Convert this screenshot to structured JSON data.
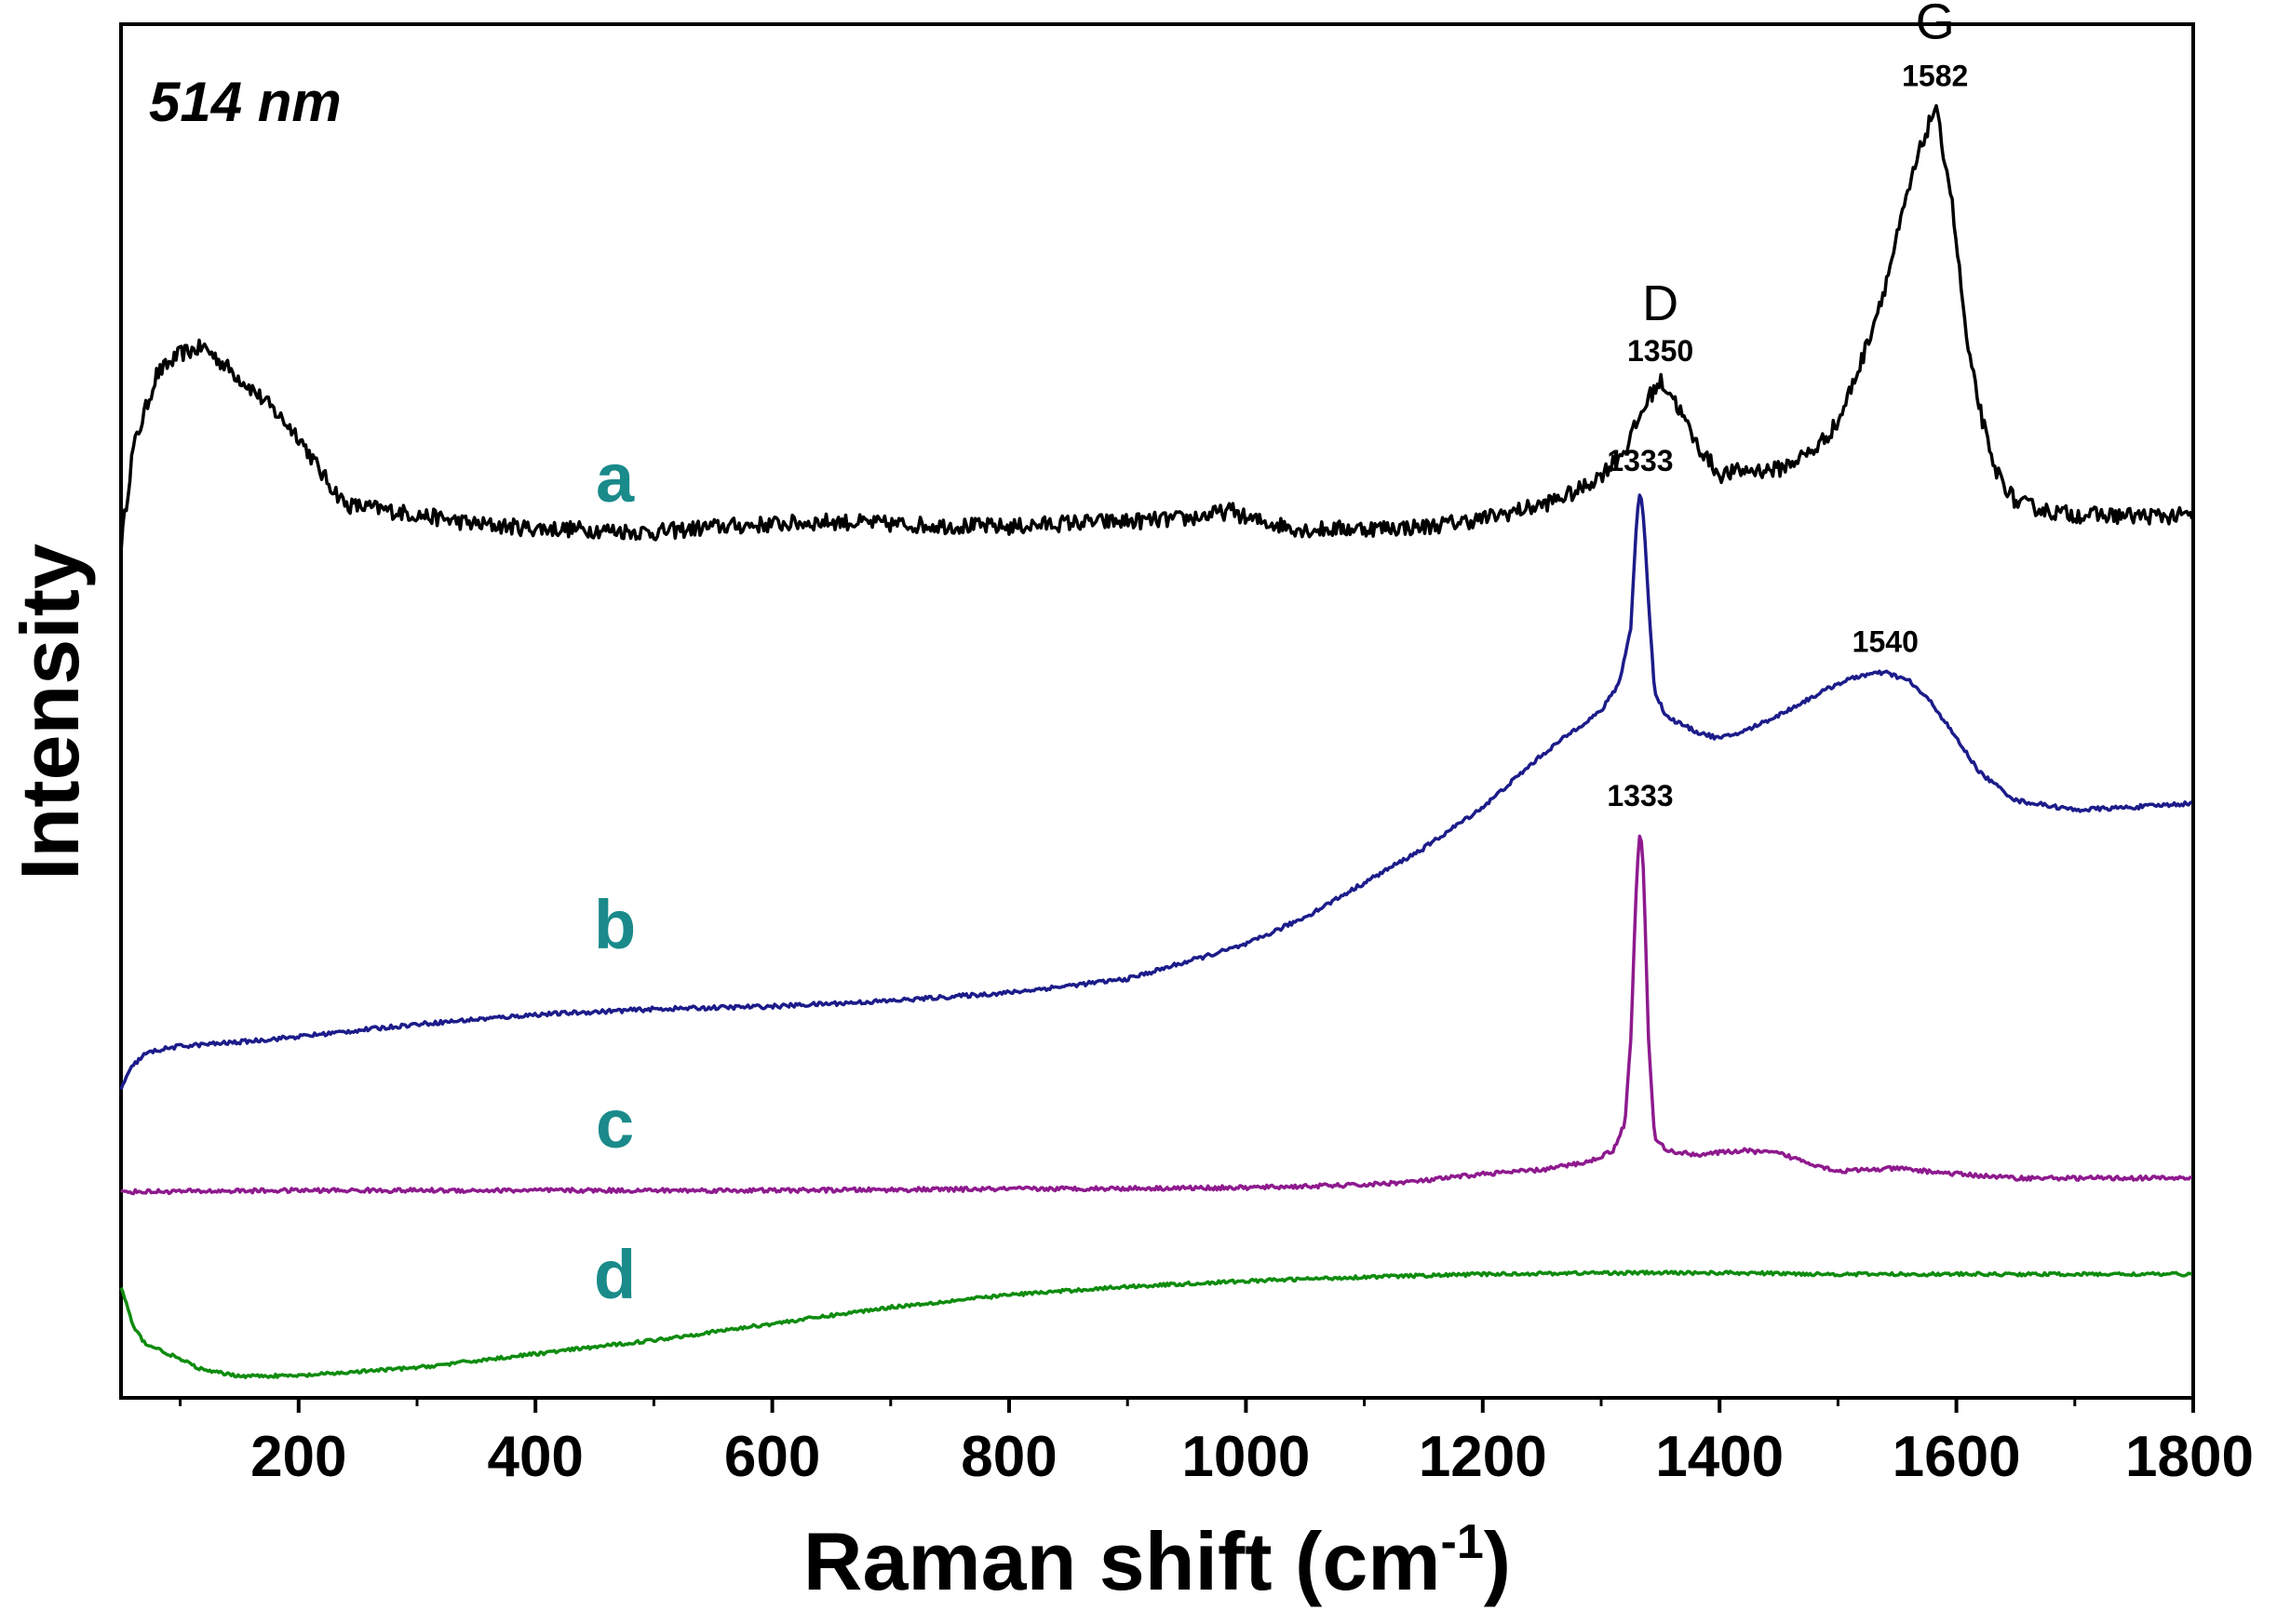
{
  "chart_data": {
    "type": "line",
    "title": "",
    "annotation_wavelength": "514 nm",
    "xlabel": "Raman shift (cm",
    "xlabel_superscript": "-1",
    "xlabel_suffix": ")",
    "ylabel": "Intensity",
    "xlim": [
      50,
      1800
    ],
    "ylim": [
      0,
      1
    ],
    "x_ticks": [
      200,
      400,
      600,
      800,
      1000,
      1200,
      1400,
      1600,
      1800
    ],
    "x_tick_labels": [
      "200",
      "400",
      "600",
      "800",
      "1000",
      "1200",
      "1400",
      "1600",
      "1800"
    ],
    "y_ticks_shown": false,
    "grid": false,
    "legend": "none (inline series labels a, b, c, d)",
    "series": [
      {
        "name": "a",
        "color": "#000000",
        "label_color": "#1a8a8a",
        "noise": 0.006,
        "x": [
          50,
          60,
          80,
          100,
          120,
          140,
          160,
          180,
          200,
          220,
          240,
          260,
          300,
          350,
          400,
          450,
          500,
          550,
          600,
          650,
          700,
          750,
          800,
          850,
          900,
          950,
          990,
          1000,
          1050,
          1100,
          1150,
          1200,
          1250,
          1280,
          1300,
          1320,
          1340,
          1350,
          1360,
          1380,
          1400,
          1420,
          1450,
          1480,
          1500,
          1520,
          1540,
          1560,
          1570,
          1582,
          1595,
          1610,
          1630,
          1650,
          1680,
          1700,
          1750,
          1800
        ],
        "y": [
          0.62,
          0.69,
          0.745,
          0.76,
          0.765,
          0.75,
          0.735,
          0.718,
          0.7,
          0.672,
          0.65,
          0.648,
          0.643,
          0.636,
          0.633,
          0.632,
          0.63,
          0.634,
          0.636,
          0.638,
          0.636,
          0.635,
          0.634,
          0.637,
          0.638,
          0.64,
          0.646,
          0.64,
          0.632,
          0.633,
          0.634,
          0.64,
          0.65,
          0.66,
          0.672,
          0.69,
          0.728,
          0.74,
          0.73,
          0.695,
          0.672,
          0.675,
          0.676,
          0.69,
          0.71,
          0.755,
          0.81,
          0.88,
          0.91,
          0.94,
          0.88,
          0.76,
          0.68,
          0.652,
          0.645,
          0.643,
          0.642,
          0.642
        ]
      },
      {
        "name": "b",
        "color": "#1c1c8a",
        "label_color": "#1a8a8a",
        "noise": 0.0015,
        "x": [
          50,
          60,
          70,
          80,
          100,
          150,
          200,
          300,
          400,
          500,
          600,
          700,
          800,
          900,
          1000,
          1050,
          1100,
          1150,
          1200,
          1250,
          1280,
          1300,
          1315,
          1325,
          1330,
          1333,
          1336,
          1340,
          1345,
          1355,
          1380,
          1400,
          1420,
          1450,
          1480,
          1500,
          1520,
          1540,
          1560,
          1580,
          1600,
          1620,
          1650,
          1700,
          1750,
          1800
        ],
        "y": [
          0.225,
          0.242,
          0.25,
          0.253,
          0.256,
          0.259,
          0.263,
          0.272,
          0.279,
          0.283,
          0.285,
          0.289,
          0.295,
          0.305,
          0.33,
          0.35,
          0.375,
          0.4,
          0.43,
          0.468,
          0.488,
          0.5,
          0.52,
          0.56,
          0.64,
          0.66,
          0.64,
          0.58,
          0.515,
          0.496,
          0.485,
          0.48,
          0.485,
          0.497,
          0.511,
          0.52,
          0.526,
          0.528,
          0.522,
          0.505,
          0.48,
          0.455,
          0.435,
          0.428,
          0.43,
          0.433
        ]
      },
      {
        "name": "c",
        "color": "#8e1a8e",
        "label_color": "#1a8a8a",
        "noise": 0.0015,
        "x": [
          50,
          200,
          400,
          600,
          800,
          1000,
          1100,
          1150,
          1200,
          1250,
          1290,
          1310,
          1320,
          1325,
          1330,
          1333,
          1336,
          1340,
          1345,
          1355,
          1380,
          1420,
          1450,
          1480,
          1500,
          1550,
          1600,
          1650,
          1700,
          1800
        ],
        "y": [
          0.15,
          0.151,
          0.151,
          0.151,
          0.152,
          0.153,
          0.155,
          0.158,
          0.163,
          0.166,
          0.172,
          0.18,
          0.2,
          0.26,
          0.38,
          0.416,
          0.38,
          0.26,
          0.19,
          0.18,
          0.177,
          0.18,
          0.178,
          0.17,
          0.165,
          0.167,
          0.163,
          0.16,
          0.16,
          0.16
        ]
      },
      {
        "name": "d",
        "color": "#0f8c0f",
        "label_color": "#1a8a8a",
        "noise": 0.0012,
        "x": [
          50,
          55,
          60,
          70,
          80,
          100,
          120,
          150,
          200,
          300,
          400,
          500,
          600,
          700,
          800,
          900,
          1000,
          1100,
          1200,
          1300,
          1400,
          1500,
          1600,
          1700,
          1800
        ],
        "y": [
          0.08,
          0.068,
          0.052,
          0.04,
          0.036,
          0.028,
          0.02,
          0.016,
          0.016,
          0.022,
          0.032,
          0.042,
          0.054,
          0.066,
          0.075,
          0.081,
          0.085,
          0.088,
          0.09,
          0.091,
          0.091,
          0.09,
          0.09,
          0.09,
          0.09
        ]
      }
    ],
    "peak_labels": [
      {
        "series": "a",
        "x": 1350,
        "y": 0.74,
        "text": "1350"
      },
      {
        "series": "a",
        "x": 1582,
        "y": 0.94,
        "text": "1582"
      },
      {
        "series": "b",
        "x": 1333,
        "y": 0.66,
        "text": "1333"
      },
      {
        "series": "b",
        "x": 1540,
        "y": 0.528,
        "text": "1540"
      },
      {
        "series": "c",
        "x": 1333,
        "y": 0.416,
        "text": "1333"
      }
    ],
    "band_labels": [
      {
        "text": "D",
        "x": 1350,
        "y": 0.79
      },
      {
        "text": "G",
        "x": 1582,
        "y": 0.995
      }
    ],
    "series_labels": [
      {
        "text": "a",
        "x": 420,
        "y": 0.67
      },
      {
        "text": "b",
        "x": 420,
        "y": 0.345
      },
      {
        "text": "c",
        "x": 420,
        "y": 0.2
      },
      {
        "text": "d",
        "x": 420,
        "y": 0.09
      }
    ]
  }
}
